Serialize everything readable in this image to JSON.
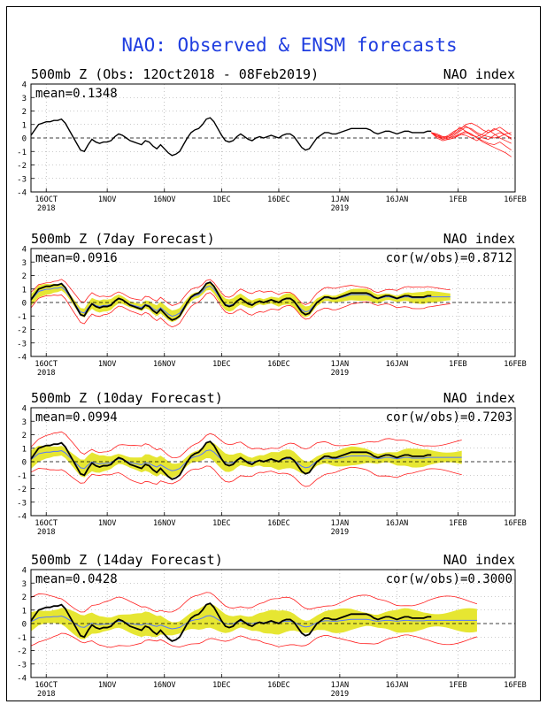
{
  "page_title": "NAO: Observed & ENSM forecasts",
  "colors": {
    "title": "#1f3de0",
    "observed": "#000000",
    "ensemble_members": "#ff2020",
    "forecast_spread": "#e6e632",
    "ensemble_mean": "#5577ff",
    "frame": "#000000"
  },
  "x_ticks": [
    {
      "label": "16OCT",
      "sub": "2018"
    },
    {
      "label": "1NOV",
      "sub": ""
    },
    {
      "label": "16NOV",
      "sub": ""
    },
    {
      "label": "1DEC",
      "sub": ""
    },
    {
      "label": "16DEC",
      "sub": ""
    },
    {
      "label": "1JAN",
      "sub": "2019"
    },
    {
      "label": "16JAN",
      "sub": ""
    },
    {
      "label": "1FEB",
      "sub": ""
    },
    {
      "label": "16FEB",
      "sub": ""
    }
  ],
  "chart_data": [
    {
      "type": "line",
      "title": "500mb Z (Obs: 12Oct2018 - 08Feb2019)",
      "right_label": "NAO index",
      "stats": "mean=0.1348",
      "ylim": [
        -4,
        4
      ],
      "yticks": [
        "4",
        "3",
        "2",
        "1",
        "0",
        "-1",
        "-2",
        "-3",
        "-4"
      ],
      "grid": true,
      "observed": [
        0.2,
        0.6,
        1.0,
        1.1,
        1.2,
        1.2,
        1.3,
        1.3,
        1.4,
        1.1,
        0.6,
        0.1,
        -0.4,
        -0.9,
        -1.0,
        -0.5,
        -0.1,
        -0.3,
        -0.4,
        -0.3,
        -0.3,
        -0.2,
        0.1,
        0.3,
        0.2,
        0.0,
        -0.2,
        -0.3,
        -0.4,
        -0.5,
        -0.2,
        -0.3,
        -0.6,
        -0.8,
        -0.5,
        -0.8,
        -1.1,
        -1.3,
        -1.2,
        -1.0,
        -0.5,
        0.0,
        0.4,
        0.6,
        0.7,
        1.0,
        1.4,
        1.5,
        1.2,
        0.7,
        0.2,
        -0.2,
        -0.3,
        -0.2,
        0.1,
        0.3,
        0.1,
        -0.1,
        -0.2,
        0.0,
        0.1,
        0.0,
        0.1,
        0.2,
        0.1,
        0.0,
        0.2,
        0.3,
        0.3,
        0.1,
        -0.3,
        -0.7,
        -0.9,
        -0.8,
        -0.4,
        0.0,
        0.2,
        0.4,
        0.4,
        0.3,
        0.3,
        0.4,
        0.5,
        0.6,
        0.7,
        0.7,
        0.7,
        0.7,
        0.7,
        0.6,
        0.4,
        0.3,
        0.4,
        0.5,
        0.5,
        0.4,
        0.3,
        0.4,
        0.5,
        0.5,
        0.4,
        0.4,
        0.4,
        0.4,
        0.5,
        0.5
      ],
      "members": [
        [
          0.4,
          0.2,
          0.0,
          -0.1,
          0.0,
          0.3,
          0.5,
          0.3,
          0.0,
          -0.3,
          -0.5,
          -0.7,
          -0.9,
          -1.1,
          -1.4
        ],
        [
          0.4,
          0.1,
          -0.1,
          0.0,
          0.2,
          0.5,
          0.8,
          0.7,
          0.4,
          0.2,
          0.1,
          0.0,
          0.1,
          0.3,
          0.4
        ],
        [
          0.4,
          0.3,
          0.1,
          0.1,
          0.3,
          0.6,
          1.0,
          1.1,
          0.9,
          0.6,
          0.4,
          0.6,
          0.8,
          0.5,
          0.2
        ],
        [
          0.4,
          0.0,
          -0.2,
          -0.1,
          0.0,
          0.2,
          0.4,
          0.3,
          0.0,
          -0.2,
          -0.4,
          -0.5,
          -0.3,
          -0.6,
          -0.9
        ],
        [
          0.4,
          0.2,
          0.0,
          0.1,
          0.4,
          0.8,
          0.5,
          0.2,
          0.1,
          0.3,
          0.6,
          0.3,
          0.0,
          -0.2,
          -0.4
        ],
        [
          0.4,
          0.1,
          0.0,
          0.2,
          0.5,
          0.7,
          0.9,
          0.6,
          0.3,
          0.0,
          -0.1,
          0.2,
          0.4,
          0.2,
          0.0
        ],
        [
          0.4,
          0.2,
          0.1,
          0.0,
          0.1,
          0.3,
          0.2,
          0.0,
          -0.2,
          0.1,
          0.4,
          0.7,
          0.5,
          0.2,
          -0.1
        ]
      ]
    },
    {
      "type": "line",
      "title": "500mb Z (7day Forecast)",
      "right_label": "NAO index",
      "stats": "mean=0.0916",
      "correlation": "cor(w/obs)=0.8712",
      "ylim": [
        -4,
        4
      ],
      "yticks": [
        "4",
        "3",
        "2",
        "1",
        "0",
        "-1",
        "-2",
        "-3",
        "-4"
      ],
      "grid": true,
      "forecast_offset": 0,
      "forecast_length": 111,
      "spread": 0.45,
      "outer": 0.8,
      "shrink": 0.8
    },
    {
      "type": "line",
      "title": "500mb Z (10day Forecast)",
      "right_label": "NAO index",
      "stats": "mean=0.0994",
      "correlation": "cor(w/obs)=0.7203",
      "ylim": [
        -4,
        4
      ],
      "yticks": [
        "4",
        "3",
        "2",
        "1",
        "0",
        "-1",
        "-2",
        "-3",
        "-4"
      ],
      "grid": true,
      "forecast_offset": 0,
      "forecast_length": 114,
      "spread": 0.7,
      "outer": 1.4,
      "shrink": 0.55
    },
    {
      "type": "line",
      "title": "500mb Z (14day Forecast)",
      "right_label": "NAO index",
      "stats": "mean=0.0428",
      "correlation": "cor(w/obs)=0.3000",
      "ylim": [
        -4,
        4
      ],
      "yticks": [
        "4",
        "3",
        "2",
        "1",
        "0",
        "-1",
        "-2",
        "-3",
        "-4"
      ],
      "grid": true,
      "forecast_offset": 0,
      "forecast_length": 118,
      "spread": 0.9,
      "outer": 1.8,
      "shrink": 0.35
    }
  ]
}
